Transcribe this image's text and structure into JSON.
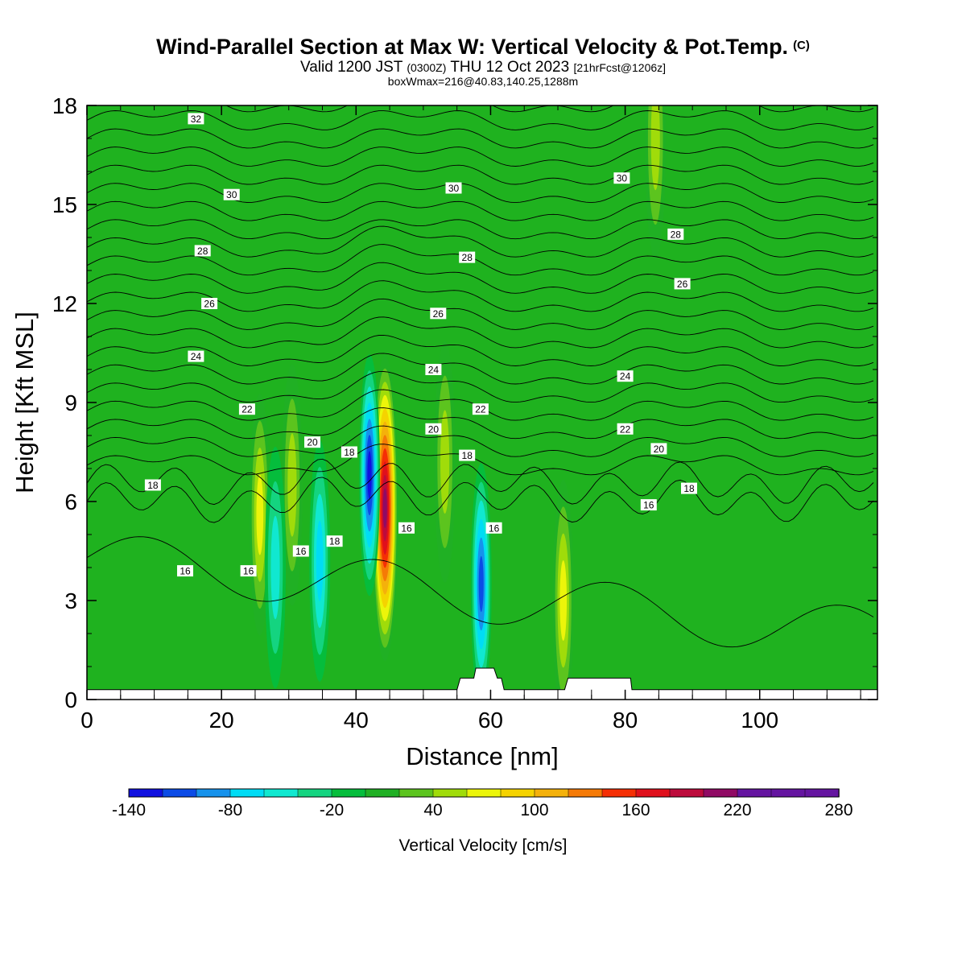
{
  "title": {
    "main": "Wind-Parallel Section at Max W: Vertical Velocity & Pot.Temp.",
    "copyright_mark": "(C)",
    "valid_prefix": "Valid 1200 JST",
    "valid_utc": "(0300Z)",
    "valid_date": "THU 12 Oct 2023",
    "forecast": "[21hrFcst@1206z]",
    "box": "boxWmax=216@40.83,140.25,1288m"
  },
  "colors": {
    "base": "#1fb21f",
    "scale": [
      "#1010e0",
      "#0b4be6",
      "#1692ec",
      "#00dcf5",
      "#10e8d0",
      "#14d480",
      "#05bd3c",
      "#20b024",
      "#5cc41e",
      "#a0dc0a",
      "#ecf50a",
      "#f5d300",
      "#f4b10b",
      "#f57a06",
      "#f52f05",
      "#e0101c",
      "#bd0b3c",
      "#900a64",
      "#6414a0"
    ],
    "contour": "#000000",
    "terrain": "#ffffff"
  },
  "chart_data": {
    "type": "heatmap",
    "xlabel": "Distance [nm]",
    "ylabel": "Height [Kft MSL]",
    "xlim": [
      0,
      117.5
    ],
    "ylim": [
      0,
      18
    ],
    "xticks": [
      0,
      20,
      40,
      60,
      80,
      100
    ],
    "yticks": [
      0,
      3,
      6,
      9,
      12,
      15,
      18
    ],
    "colorbar": {
      "label": "Vertical Velocity [cm/s]",
      "tick_labels": [
        "-140",
        "-80",
        "-20",
        "40",
        "100",
        "160",
        "220",
        "280"
      ],
      "tick_values": [
        -140,
        -80,
        -20,
        40,
        100,
        160,
        220,
        280
      ],
      "levels": [
        -140,
        -120,
        -100,
        -80,
        -60,
        -40,
        -20,
        0,
        20,
        40,
        60,
        80,
        100,
        120,
        140,
        160,
        180,
        200,
        220,
        240,
        260,
        280
      ]
    },
    "terrain_height": [
      [
        0,
        0.3
      ],
      [
        55,
        0.3
      ],
      [
        55.5,
        0.65
      ],
      [
        57.5,
        0.65
      ],
      [
        57.8,
        0.95
      ],
      [
        60.5,
        0.95
      ],
      [
        61,
        0.65
      ],
      [
        61.6,
        0.65
      ],
      [
        62,
        0.3
      ],
      [
        71,
        0.3
      ],
      [
        71.5,
        0.65
      ],
      [
        80.8,
        0.65
      ],
      [
        81,
        0.3
      ],
      [
        117.5,
        0.3
      ]
    ],
    "updrafts": [
      {
        "x": 44.3,
        "z": 5.8,
        "value": 216
      },
      {
        "x": 25.7,
        "z": 5.6,
        "value": 70
      },
      {
        "x": 30.5,
        "z": 6.5,
        "value": 60
      },
      {
        "x": 70.8,
        "z": 3.0,
        "value": 75
      },
      {
        "x": 53.2,
        "z": 7.2,
        "value": 60
      },
      {
        "x": 84.5,
        "z": 17.0,
        "value": 55
      }
    ],
    "downdrafts": [
      {
        "x": 42.0,
        "z": 6.8,
        "value": -140
      },
      {
        "x": 58.6,
        "z": 3.5,
        "value": -110
      },
      {
        "x": 34.6,
        "z": 4.2,
        "value": -80
      },
      {
        "x": 28.0,
        "z": 4.0,
        "value": -60
      }
    ],
    "theta_contours": {
      "labels": [
        {
          "text": "32",
          "x": 16.2,
          "z": 17.6
        },
        {
          "text": "30",
          "x": 21.5,
          "z": 15.3
        },
        {
          "text": "30",
          "x": 54.5,
          "z": 15.5
        },
        {
          "text": "30",
          "x": 79.5,
          "z": 15.8
        },
        {
          "text": "28",
          "x": 17.2,
          "z": 13.6
        },
        {
          "text": "28",
          "x": 56.5,
          "z": 13.4
        },
        {
          "text": "28",
          "x": 87.5,
          "z": 14.1
        },
        {
          "text": "26",
          "x": 18.2,
          "z": 12.0
        },
        {
          "text": "26",
          "x": 52.2,
          "z": 11.7
        },
        {
          "text": "26",
          "x": 88.5,
          "z": 12.6
        },
        {
          "text": "24",
          "x": 16.2,
          "z": 10.4
        },
        {
          "text": "24",
          "x": 51.5,
          "z": 10.0
        },
        {
          "text": "24",
          "x": 80.0,
          "z": 9.8
        },
        {
          "text": "22",
          "x": 23.8,
          "z": 8.8
        },
        {
          "text": "22",
          "x": 58.5,
          "z": 8.8
        },
        {
          "text": "22",
          "x": 80.0,
          "z": 8.2
        },
        {
          "text": "20",
          "x": 33.5,
          "z": 7.8
        },
        {
          "text": "20",
          "x": 51.5,
          "z": 8.2
        },
        {
          "text": "20",
          "x": 85.0,
          "z": 7.6
        },
        {
          "text": "18",
          "x": 9.8,
          "z": 6.5
        },
        {
          "text": "18",
          "x": 39.0,
          "z": 7.5
        },
        {
          "text": "18",
          "x": 56.5,
          "z": 7.4
        },
        {
          "text": "18",
          "x": 89.5,
          "z": 6.4
        },
        {
          "text": "18",
          "x": 36.8,
          "z": 4.8
        },
        {
          "text": "16",
          "x": 14.6,
          "z": 3.9
        },
        {
          "text": "16",
          "x": 24.0,
          "z": 3.9
        },
        {
          "text": "16",
          "x": 31.8,
          "z": 4.5
        },
        {
          "text": "16",
          "x": 47.5,
          "z": 5.2
        },
        {
          "text": "16",
          "x": 60.5,
          "z": 5.2
        },
        {
          "text": "16",
          "x": 83.5,
          "z": 5.9
        }
      ]
    }
  }
}
